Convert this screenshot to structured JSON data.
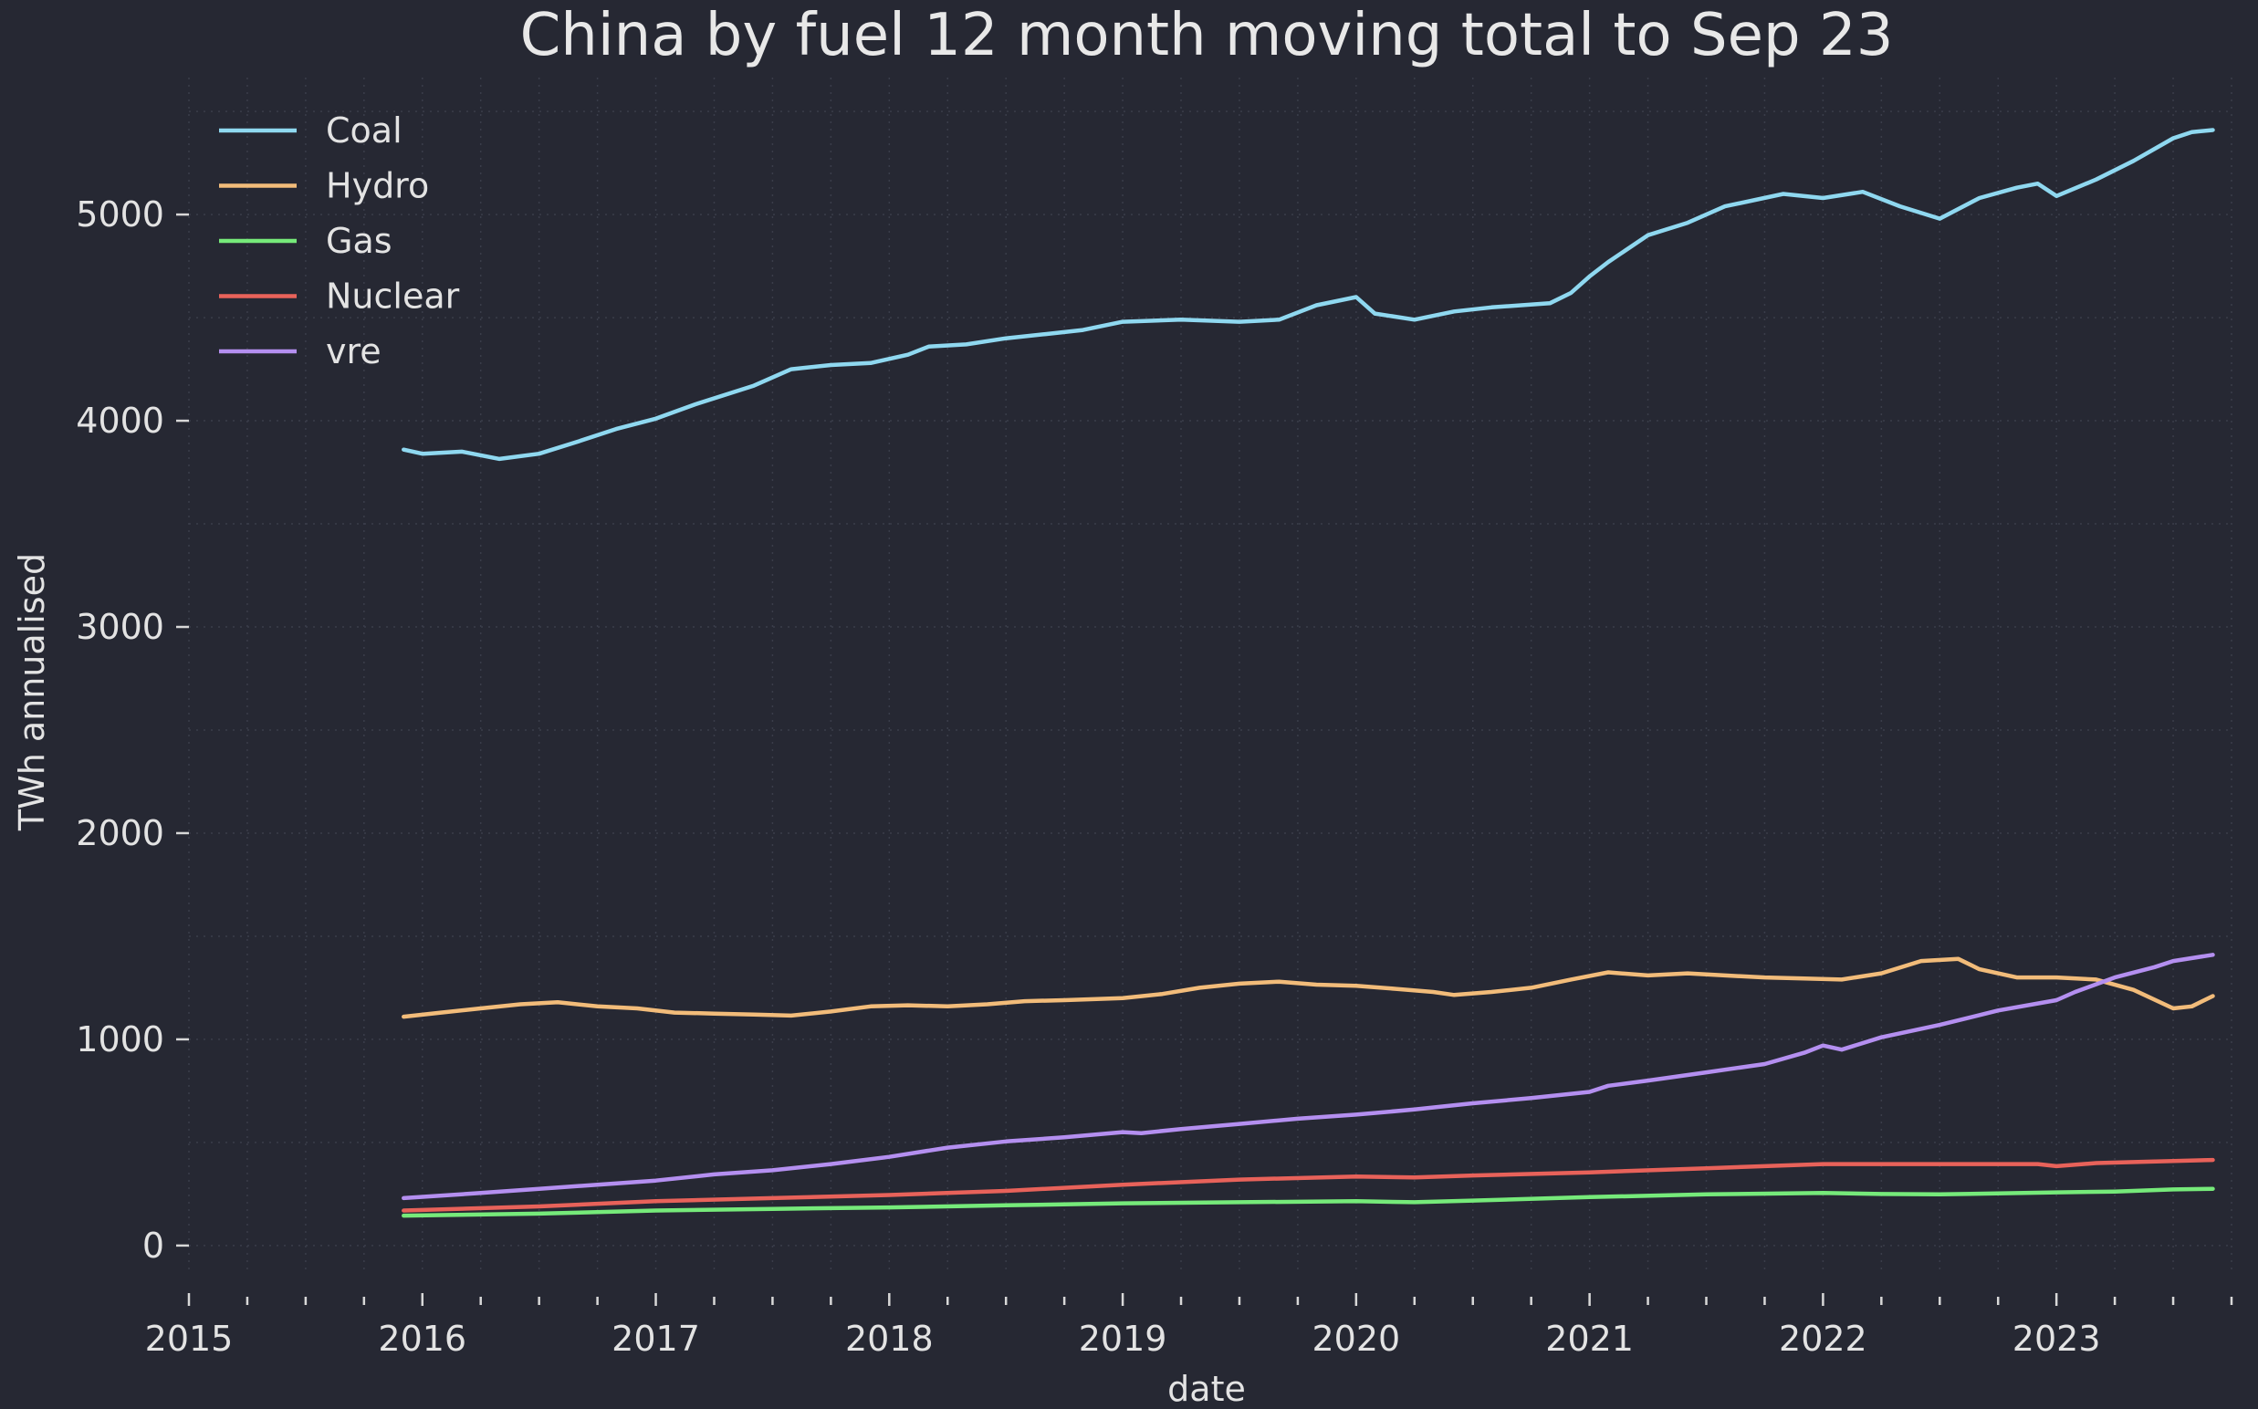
{
  "chart_data": {
    "type": "line",
    "title": "China by fuel 12 month moving total to Sep 23",
    "xlabel": "date",
    "ylabel": "TWh annualised",
    "xlim": [
      2015.0,
      2023.75
    ],
    "ylim": [
      -120,
      5620
    ],
    "x_ticks": [
      2015,
      2016,
      2017,
      2018,
      2019,
      2020,
      2021,
      2022,
      2023
    ],
    "x_tick_labels": [
      "2015",
      "2016",
      "2017",
      "2018",
      "2019",
      "2020",
      "2021",
      "2022",
      "2023"
    ],
    "y_ticks": [
      0,
      1000,
      2000,
      3000,
      4000,
      5000
    ],
    "y_tick_labels": [
      "0",
      "1000",
      "2000",
      "3000",
      "4000",
      "5000"
    ],
    "grid": true,
    "legend_position": "top-left",
    "series": [
      {
        "name": "Coal",
        "color": "#8fd8f0",
        "points": [
          [
            2015.92,
            3860
          ],
          [
            2016.0,
            3840
          ],
          [
            2016.17,
            3850
          ],
          [
            2016.33,
            3815
          ],
          [
            2016.5,
            3840
          ],
          [
            2016.67,
            3900
          ],
          [
            2016.83,
            3960
          ],
          [
            2017.0,
            4010
          ],
          [
            2017.17,
            4080
          ],
          [
            2017.42,
            4170
          ],
          [
            2017.58,
            4250
          ],
          [
            2017.75,
            4270
          ],
          [
            2017.92,
            4280
          ],
          [
            2018.08,
            4320
          ],
          [
            2018.17,
            4360
          ],
          [
            2018.33,
            4370
          ],
          [
            2018.5,
            4400
          ],
          [
            2018.67,
            4420
          ],
          [
            2018.83,
            4440
          ],
          [
            2019.0,
            4480
          ],
          [
            2019.25,
            4490
          ],
          [
            2019.5,
            4480
          ],
          [
            2019.67,
            4490
          ],
          [
            2019.83,
            4560
          ],
          [
            2020.0,
            4600
          ],
          [
            2020.08,
            4520
          ],
          [
            2020.25,
            4490
          ],
          [
            2020.42,
            4530
          ],
          [
            2020.58,
            4550
          ],
          [
            2020.83,
            4570
          ],
          [
            2020.92,
            4620
          ],
          [
            2021.0,
            4700
          ],
          [
            2021.08,
            4770
          ],
          [
            2021.25,
            4900
          ],
          [
            2021.42,
            4960
          ],
          [
            2021.58,
            5040
          ],
          [
            2021.83,
            5100
          ],
          [
            2022.0,
            5080
          ],
          [
            2022.17,
            5110
          ],
          [
            2022.33,
            5040
          ],
          [
            2022.5,
            4980
          ],
          [
            2022.67,
            5080
          ],
          [
            2022.83,
            5130
          ],
          [
            2022.92,
            5150
          ],
          [
            2023.0,
            5090
          ],
          [
            2023.17,
            5170
          ],
          [
            2023.33,
            5260
          ],
          [
            2023.5,
            5370
          ],
          [
            2023.58,
            5400
          ],
          [
            2023.67,
            5410
          ]
        ]
      },
      {
        "name": "Hydro",
        "color": "#f2bc7a",
        "points": [
          [
            2015.92,
            1110
          ],
          [
            2016.08,
            1130
          ],
          [
            2016.25,
            1150
          ],
          [
            2016.42,
            1170
          ],
          [
            2016.58,
            1180
          ],
          [
            2016.75,
            1160
          ],
          [
            2016.92,
            1150
          ],
          [
            2017.08,
            1130
          ],
          [
            2017.25,
            1125
          ],
          [
            2017.42,
            1120
          ],
          [
            2017.58,
            1115
          ],
          [
            2017.75,
            1135
          ],
          [
            2017.92,
            1160
          ],
          [
            2018.08,
            1165
          ],
          [
            2018.25,
            1160
          ],
          [
            2018.42,
            1170
          ],
          [
            2018.58,
            1185
          ],
          [
            2018.75,
            1190
          ],
          [
            2019.0,
            1200
          ],
          [
            2019.17,
            1220
          ],
          [
            2019.33,
            1250
          ],
          [
            2019.5,
            1270
          ],
          [
            2019.67,
            1280
          ],
          [
            2019.83,
            1265
          ],
          [
            2020.0,
            1260
          ],
          [
            2020.17,
            1245
          ],
          [
            2020.33,
            1230
          ],
          [
            2020.42,
            1215
          ],
          [
            2020.58,
            1230
          ],
          [
            2020.75,
            1250
          ],
          [
            2020.92,
            1290
          ],
          [
            2021.08,
            1325
          ],
          [
            2021.25,
            1310
          ],
          [
            2021.42,
            1320
          ],
          [
            2021.58,
            1310
          ],
          [
            2021.75,
            1300
          ],
          [
            2021.92,
            1295
          ],
          [
            2022.08,
            1290
          ],
          [
            2022.25,
            1320
          ],
          [
            2022.42,
            1380
          ],
          [
            2022.58,
            1390
          ],
          [
            2022.67,
            1340
          ],
          [
            2022.83,
            1300
          ],
          [
            2023.0,
            1300
          ],
          [
            2023.17,
            1290
          ],
          [
            2023.33,
            1240
          ],
          [
            2023.5,
            1150
          ],
          [
            2023.58,
            1160
          ],
          [
            2023.67,
            1210
          ]
        ]
      },
      {
        "name": "Gas",
        "color": "#76ea7a",
        "points": [
          [
            2015.92,
            145
          ],
          [
            2016.5,
            155
          ],
          [
            2017.0,
            170
          ],
          [
            2017.5,
            178
          ],
          [
            2018.0,
            185
          ],
          [
            2018.5,
            195
          ],
          [
            2019.0,
            205
          ],
          [
            2019.5,
            210
          ],
          [
            2020.0,
            215
          ],
          [
            2020.25,
            210
          ],
          [
            2020.5,
            218
          ],
          [
            2021.0,
            235
          ],
          [
            2021.5,
            248
          ],
          [
            2022.0,
            255
          ],
          [
            2022.25,
            250
          ],
          [
            2022.5,
            248
          ],
          [
            2023.0,
            258
          ],
          [
            2023.25,
            262
          ],
          [
            2023.5,
            272
          ],
          [
            2023.67,
            275
          ]
        ]
      },
      {
        "name": "Nuclear",
        "color": "#e8625a",
        "points": [
          [
            2015.92,
            170
          ],
          [
            2016.5,
            190
          ],
          [
            2017.0,
            215
          ],
          [
            2017.5,
            230
          ],
          [
            2018.0,
            245
          ],
          [
            2018.5,
            265
          ],
          [
            2019.0,
            295
          ],
          [
            2019.5,
            320
          ],
          [
            2020.0,
            335
          ],
          [
            2020.25,
            330
          ],
          [
            2020.5,
            340
          ],
          [
            2021.0,
            355
          ],
          [
            2021.5,
            375
          ],
          [
            2022.0,
            395
          ],
          [
            2022.5,
            395
          ],
          [
            2022.92,
            395
          ],
          [
            2023.0,
            385
          ],
          [
            2023.17,
            400
          ],
          [
            2023.5,
            410
          ],
          [
            2023.67,
            415
          ]
        ]
      },
      {
        "name": "vre",
        "color": "#b48ff0",
        "points": [
          [
            2015.92,
            230
          ],
          [
            2016.25,
            255
          ],
          [
            2016.5,
            275
          ],
          [
            2016.75,
            295
          ],
          [
            2017.0,
            315
          ],
          [
            2017.25,
            345
          ],
          [
            2017.5,
            365
          ],
          [
            2017.75,
            395
          ],
          [
            2018.0,
            430
          ],
          [
            2018.25,
            475
          ],
          [
            2018.5,
            505
          ],
          [
            2018.75,
            525
          ],
          [
            2019.0,
            550
          ],
          [
            2019.08,
            545
          ],
          [
            2019.25,
            565
          ],
          [
            2019.5,
            590
          ],
          [
            2019.75,
            615
          ],
          [
            2020.0,
            635
          ],
          [
            2020.25,
            660
          ],
          [
            2020.5,
            690
          ],
          [
            2020.75,
            715
          ],
          [
            2021.0,
            745
          ],
          [
            2021.08,
            775
          ],
          [
            2021.25,
            800
          ],
          [
            2021.5,
            840
          ],
          [
            2021.75,
            880
          ],
          [
            2021.92,
            935
          ],
          [
            2022.0,
            970
          ],
          [
            2022.08,
            950
          ],
          [
            2022.25,
            1010
          ],
          [
            2022.5,
            1070
          ],
          [
            2022.75,
            1140
          ],
          [
            2023.0,
            1190
          ],
          [
            2023.08,
            1230
          ],
          [
            2023.25,
            1300
          ],
          [
            2023.42,
            1350
          ],
          [
            2023.5,
            1380
          ],
          [
            2023.67,
            1410
          ]
        ]
      }
    ]
  }
}
